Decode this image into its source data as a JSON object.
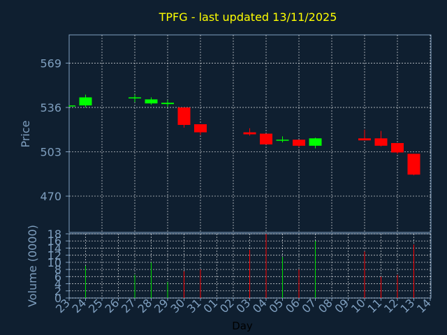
{
  "chart_data": [
    {
      "type": "candlestick",
      "title": "TPFG - last updated 13/11/2025",
      "ylabel": "Price",
      "ylim": [
        443,
        590
      ],
      "yticks": [
        470,
        503,
        536,
        569
      ],
      "grid": true,
      "x_day_labels": [
        "23",
        "24",
        "25",
        "26",
        "27",
        "28",
        "29",
        "30",
        "31",
        "01",
        "02",
        "03",
        "04",
        "05",
        "06",
        "07",
        "08",
        "09",
        "10",
        "11",
        "12",
        "13",
        "14"
      ],
      "candles": [
        {
          "day": "23",
          "open": 537.0,
          "high": 537.5,
          "low": 536.5,
          "close": 537.5
        },
        {
          "day": "24",
          "open": 537.5,
          "high": 545.5,
          "low": 536.0,
          "close": 543.5
        },
        {
          "day": "27",
          "open": 543.0,
          "high": 545.5,
          "low": 540.0,
          "close": 543.5
        },
        {
          "day": "28",
          "open": 539.0,
          "high": 543.5,
          "low": 538.0,
          "close": 542.0
        },
        {
          "day": "29",
          "open": 538.5,
          "high": 541.5,
          "low": 536.5,
          "close": 539.5
        },
        {
          "day": "30",
          "open": 536.0,
          "high": 536.0,
          "low": 521.0,
          "close": 523.0
        },
        {
          "day": "31",
          "open": 523.5,
          "high": 523.5,
          "low": 515.5,
          "close": 517.5
        },
        {
          "day": "03",
          "open": 517.5,
          "high": 520.5,
          "low": 515.0,
          "close": 516.0
        },
        {
          "day": "04",
          "open": 516.5,
          "high": 516.5,
          "low": 508.5,
          "close": 508.5
        },
        {
          "day": "05",
          "open": 511.5,
          "high": 514.5,
          "low": 510.0,
          "close": 512.0
        },
        {
          "day": "06",
          "open": 512.0,
          "high": 512.0,
          "low": 506.5,
          "close": 507.5
        },
        {
          "day": "07",
          "open": 507.5,
          "high": 513.5,
          "low": 505.5,
          "close": 513.0
        },
        {
          "day": "10",
          "open": 513.0,
          "high": 519.5,
          "low": 511.5,
          "close": 511.5
        },
        {
          "day": "11",
          "open": 513.0,
          "high": 518.5,
          "low": 507.0,
          "close": 507.5
        },
        {
          "day": "12",
          "open": 509.5,
          "high": 509.5,
          "low": 501.5,
          "close": 502.5
        },
        {
          "day": "13",
          "open": 501.5,
          "high": 501.5,
          "low": 485.5,
          "close": 486.0
        }
      ]
    },
    {
      "type": "bar",
      "xlabel": "Day",
      "ylabel": "Volume (0000)",
      "ylim": [
        0,
        18
      ],
      "yticks": [
        0,
        2,
        4,
        6,
        8,
        10,
        12,
        14,
        16,
        18
      ],
      "categories": [
        "23",
        "24",
        "27",
        "28",
        "29",
        "30",
        "31",
        "03",
        "04",
        "05",
        "06",
        "07",
        "10",
        "11",
        "12",
        "13"
      ],
      "values": [
        0,
        9,
        6.5,
        10,
        4.5,
        7.5,
        8,
        13.5,
        18,
        11.5,
        8,
        16,
        13,
        6,
        6.5,
        15
      ],
      "bar_colors": [
        "#ff0000",
        "#00e000",
        "#00e000",
        "#00e000",
        "#00e000",
        "#ff0000",
        "#ff0000",
        "#ff0000",
        "#ff0000",
        "#00e000",
        "#ff0000",
        "#00e000",
        "#ff0000",
        "#ff0000",
        "#ff0000",
        "#ff0000"
      ]
    }
  ],
  "colors": {
    "background": "#0f1f30",
    "axis_text": "#7f9fbf",
    "title": "#ffff00",
    "up": "#00ff00",
    "down": "#ff0000",
    "grid": "#ffffff"
  }
}
